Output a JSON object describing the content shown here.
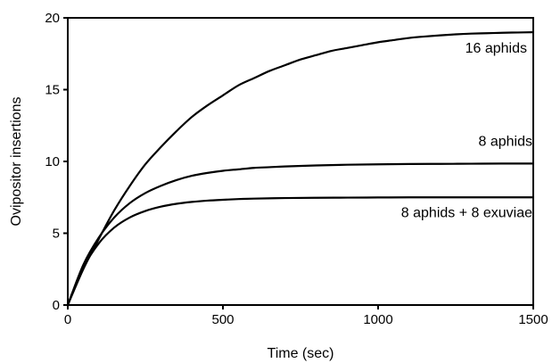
{
  "chart_data": {
    "type": "line",
    "title": "",
    "xlabel": "Time (sec)",
    "ylabel": "Ovipositor insertions",
    "xlim": [
      0,
      1500
    ],
    "ylim": [
      0,
      20
    ],
    "xticks": [
      0,
      500,
      1000,
      1500
    ],
    "yticks": [
      0,
      5,
      10,
      15,
      20
    ],
    "grid": false,
    "legend": "none (series labeled inline)",
    "series": [
      {
        "name": "16 aphids",
        "x": [
          0,
          50,
          100,
          150,
          200,
          250,
          300,
          350,
          400,
          450,
          500,
          550,
          600,
          650,
          700,
          750,
          800,
          850,
          900,
          950,
          1000,
          1050,
          1100,
          1150,
          1200,
          1250,
          1300,
          1350,
          1400,
          1450,
          1500
        ],
        "y": [
          0,
          2.5,
          4.6,
          6.6,
          8.3,
          9.8,
          11.0,
          12.1,
          13.1,
          13.9,
          14.6,
          15.3,
          15.8,
          16.3,
          16.7,
          17.1,
          17.4,
          17.7,
          17.9,
          18.1,
          18.3,
          18.45,
          18.6,
          18.7,
          18.78,
          18.85,
          18.9,
          18.93,
          18.96,
          18.98,
          19.0
        ]
      },
      {
        "name": "8 aphids",
        "x": [
          0,
          50,
          100,
          150,
          200,
          250,
          300,
          350,
          400,
          450,
          500,
          550,
          600,
          650,
          700,
          800,
          900,
          1000,
          1100,
          1200,
          1300,
          1400,
          1500
        ],
        "y": [
          0,
          2.8,
          4.7,
          6.1,
          7.1,
          7.8,
          8.3,
          8.7,
          9.0,
          9.2,
          9.35,
          9.45,
          9.55,
          9.6,
          9.65,
          9.72,
          9.77,
          9.8,
          9.82,
          9.83,
          9.84,
          9.85,
          9.85
        ]
      },
      {
        "name": "8 aphids + 8 exuviae",
        "x": [
          0,
          50,
          100,
          150,
          200,
          250,
          300,
          350,
          400,
          450,
          500,
          550,
          600,
          700,
          800,
          900,
          1000,
          1100,
          1200,
          1300,
          1400,
          1500
        ],
        "y": [
          0,
          2.6,
          4.3,
          5.4,
          6.1,
          6.55,
          6.85,
          7.05,
          7.18,
          7.27,
          7.33,
          7.38,
          7.41,
          7.45,
          7.47,
          7.48,
          7.49,
          7.5,
          7.5,
          7.5,
          7.5,
          7.5
        ]
      }
    ]
  }
}
